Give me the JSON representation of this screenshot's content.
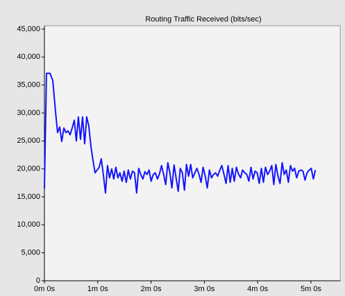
{
  "chart_data": {
    "type": "line",
    "title": "Routing Traffic Received (bits/sec)",
    "x": [
      0,
      2.3,
      6.3,
      9.4,
      12.5,
      14.8,
      17.2,
      19.5,
      21.9,
      24.2,
      26.5,
      28.9,
      31.2,
      33.6,
      35.9,
      38.2,
      40.6,
      42.9,
      45.3,
      47.6,
      49.9,
      52.3,
      54.6,
      57.0,
      59.3,
      61.6,
      64.0,
      66.3,
      68.7,
      71.0,
      73.3,
      75.7,
      78.0,
      80.4,
      82.7,
      85.0,
      87.4,
      89.7,
      92.1,
      94.4,
      96.7,
      99.1,
      101.4,
      103.8,
      106.1,
      108.4,
      110.8,
      113.1,
      115.5,
      117.8,
      120.1,
      122.5,
      124.8,
      127.2,
      129.5,
      131.8,
      134.2,
      136.5,
      138.9,
      141.2,
      143.5,
      145.9,
      148.2,
      150.6,
      152.9,
      155.2,
      157.6,
      159.9,
      162.3,
      164.6,
      166.9,
      169.3,
      171.6,
      174.0,
      176.3,
      178.6,
      181.0,
      183.3,
      185.7,
      188.0,
      190.3,
      192.7,
      195.0,
      197.4,
      199.7,
      202.0,
      204.4,
      206.7,
      209.1,
      211.4,
      213.7,
      216.1,
      218.4,
      220.8,
      223.1,
      225.4,
      227.8,
      230.1,
      232.5,
      234.8,
      237.1,
      239.5,
      241.8,
      244.2,
      246.5,
      248.8,
      251.2,
      253.5,
      255.9,
      258.2,
      260.5,
      262.9,
      265.2,
      267.6,
      269.9,
      272.2,
      274.6,
      276.9,
      279.3,
      281.6,
      283.9,
      286.3,
      288.6,
      291.0,
      293.3,
      295.6,
      298.0,
      300.3,
      302.7,
      305.0
    ],
    "series": [
      {
        "color": "#1414ff",
        "values": [
          16500,
          37100,
          37100,
          35800,
          30200,
          26500,
          27500,
          24900,
          27300,
          26500,
          26800,
          26100,
          27300,
          28700,
          25000,
          29300,
          25300,
          29300,
          24500,
          29300,
          27700,
          24100,
          21600,
          19300,
          19800,
          20300,
          21800,
          19000,
          15700,
          20600,
          18400,
          20000,
          18200,
          20300,
          18400,
          19300,
          17800,
          19600,
          17600,
          19800,
          18200,
          19600,
          19300,
          15700,
          20100,
          19000,
          18200,
          19500,
          19000,
          19800,
          17800,
          19000,
          19300,
          18200,
          19100,
          20600,
          19000,
          17200,
          21100,
          19300,
          16600,
          20700,
          18400,
          16000,
          20100,
          19300,
          16200,
          20800,
          18700,
          20800,
          18400,
          19300,
          20100,
          19000,
          17600,
          20300,
          18700,
          16600,
          19800,
          18400,
          19000,
          19300,
          18700,
          19800,
          20600,
          19100,
          17400,
          20600,
          17600,
          20100,
          17800,
          20300,
          19100,
          18400,
          19800,
          19300,
          19000,
          17800,
          20300,
          18200,
          19600,
          19300,
          17400,
          20100,
          17600,
          20300,
          19000,
          19600,
          20600,
          17200,
          20800,
          18700,
          17400,
          21100,
          19000,
          19800,
          17600,
          20600,
          19600,
          20100,
          18400,
          19600,
          19800,
          19600,
          18000,
          19300,
          19800,
          20100,
          18200,
          19800
        ]
      }
    ],
    "xlim": [
      0,
      333
    ],
    "xticks": [
      {
        "value": 0,
        "label": "0m 0s"
      },
      {
        "value": 60,
        "label": "1m 0s"
      },
      {
        "value": 120,
        "label": "2m 0s"
      },
      {
        "value": 180,
        "label": "3m 0s"
      },
      {
        "value": 240,
        "label": "4m 0s"
      },
      {
        "value": 300,
        "label": "5m 0s"
      }
    ],
    "ylim": [
      0,
      45600
    ],
    "yticks": [
      0,
      {
        "value": 5000,
        "label": "5,000"
      },
      {
        "value": 10000,
        "label": "10,000"
      },
      {
        "value": 15000,
        "label": "15,000"
      },
      {
        "value": 20000,
        "label": "20,000"
      },
      {
        "value": 25000,
        "label": "25,000"
      },
      {
        "value": 30000,
        "label": "30,000"
      },
      {
        "value": 35000,
        "label": "35,000"
      },
      {
        "value": 40000,
        "label": "40,000"
      },
      {
        "value": 45000,
        "label": "45,000"
      }
    ],
    "grid": false
  }
}
